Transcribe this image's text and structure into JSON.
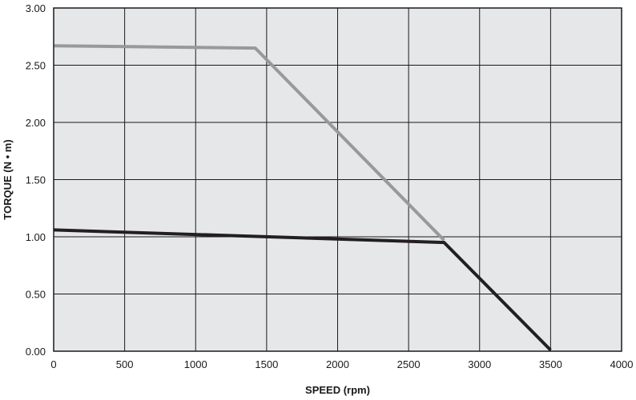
{
  "chart_data": {
    "type": "line",
    "title": "",
    "xlabel": "SPEED (rpm)",
    "ylabel": "TORQUE (N • m)",
    "xlim": [
      0,
      4000
    ],
    "ylim": [
      0,
      3
    ],
    "grid": true,
    "x_ticks": [
      0,
      500,
      1000,
      1500,
      2000,
      2500,
      3000,
      3500,
      4000
    ],
    "y_ticks": [
      "0.00",
      "0.50",
      "1.00",
      "1.50",
      "2.00",
      "2.50",
      "3.00"
    ],
    "plot_background": "#e6e7e9",
    "grid_color": "#1a1a1a",
    "series": [
      {
        "color": "#999999",
        "points": [
          [
            0,
            2.67
          ],
          [
            1420,
            2.65
          ],
          [
            2750,
            0.97
          ]
        ]
      },
      {
        "color": "#231f20",
        "points": [
          [
            0,
            1.06
          ],
          [
            2750,
            0.95
          ],
          [
            3500,
            0.01
          ]
        ]
      }
    ]
  }
}
